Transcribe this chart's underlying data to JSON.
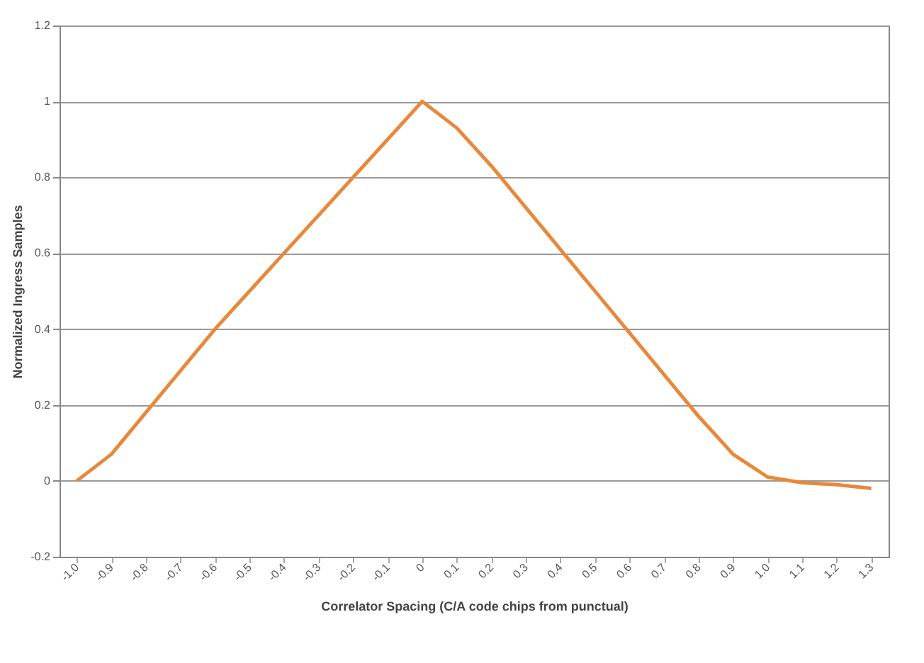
{
  "chart_data": {
    "type": "line",
    "xlabel": "Correlator Spacing (C/A code chips from punctual)",
    "ylabel": "Normalized Ingress Samples",
    "categories": [
      "-1.0",
      "-0.9",
      "-0.8",
      "-0.7",
      "-0.6",
      "-0.5",
      "-0.4",
      "-0.3",
      "-0.2",
      "-0.1",
      "0",
      "0.1",
      "0.2",
      "0.3",
      "0.4",
      "0.5",
      "0.6",
      "0.7",
      "0.8",
      "0.9",
      "1.0",
      "1.1",
      "1.2",
      "1.3"
    ],
    "series": [
      {
        "color": "#e8883a",
        "values": [
          0,
          0.07,
          0.18,
          0.29,
          0.4,
          0.5,
          0.6,
          0.7,
          0.8,
          0.9,
          1,
          0.93,
          0.83,
          0.72,
          0.61,
          0.5,
          0.39,
          0.28,
          0.17,
          0.07,
          0.01,
          -0.005,
          -0.01,
          -0.02
        ]
      }
    ],
    "ylim": [
      -0.2,
      1.2
    ],
    "yticks": [
      -0.2,
      0,
      0.2,
      0.4,
      0.6,
      0.8,
      1,
      1.2
    ],
    "grid": "y",
    "legend": false,
    "marker": "none",
    "line_style": "solid"
  }
}
